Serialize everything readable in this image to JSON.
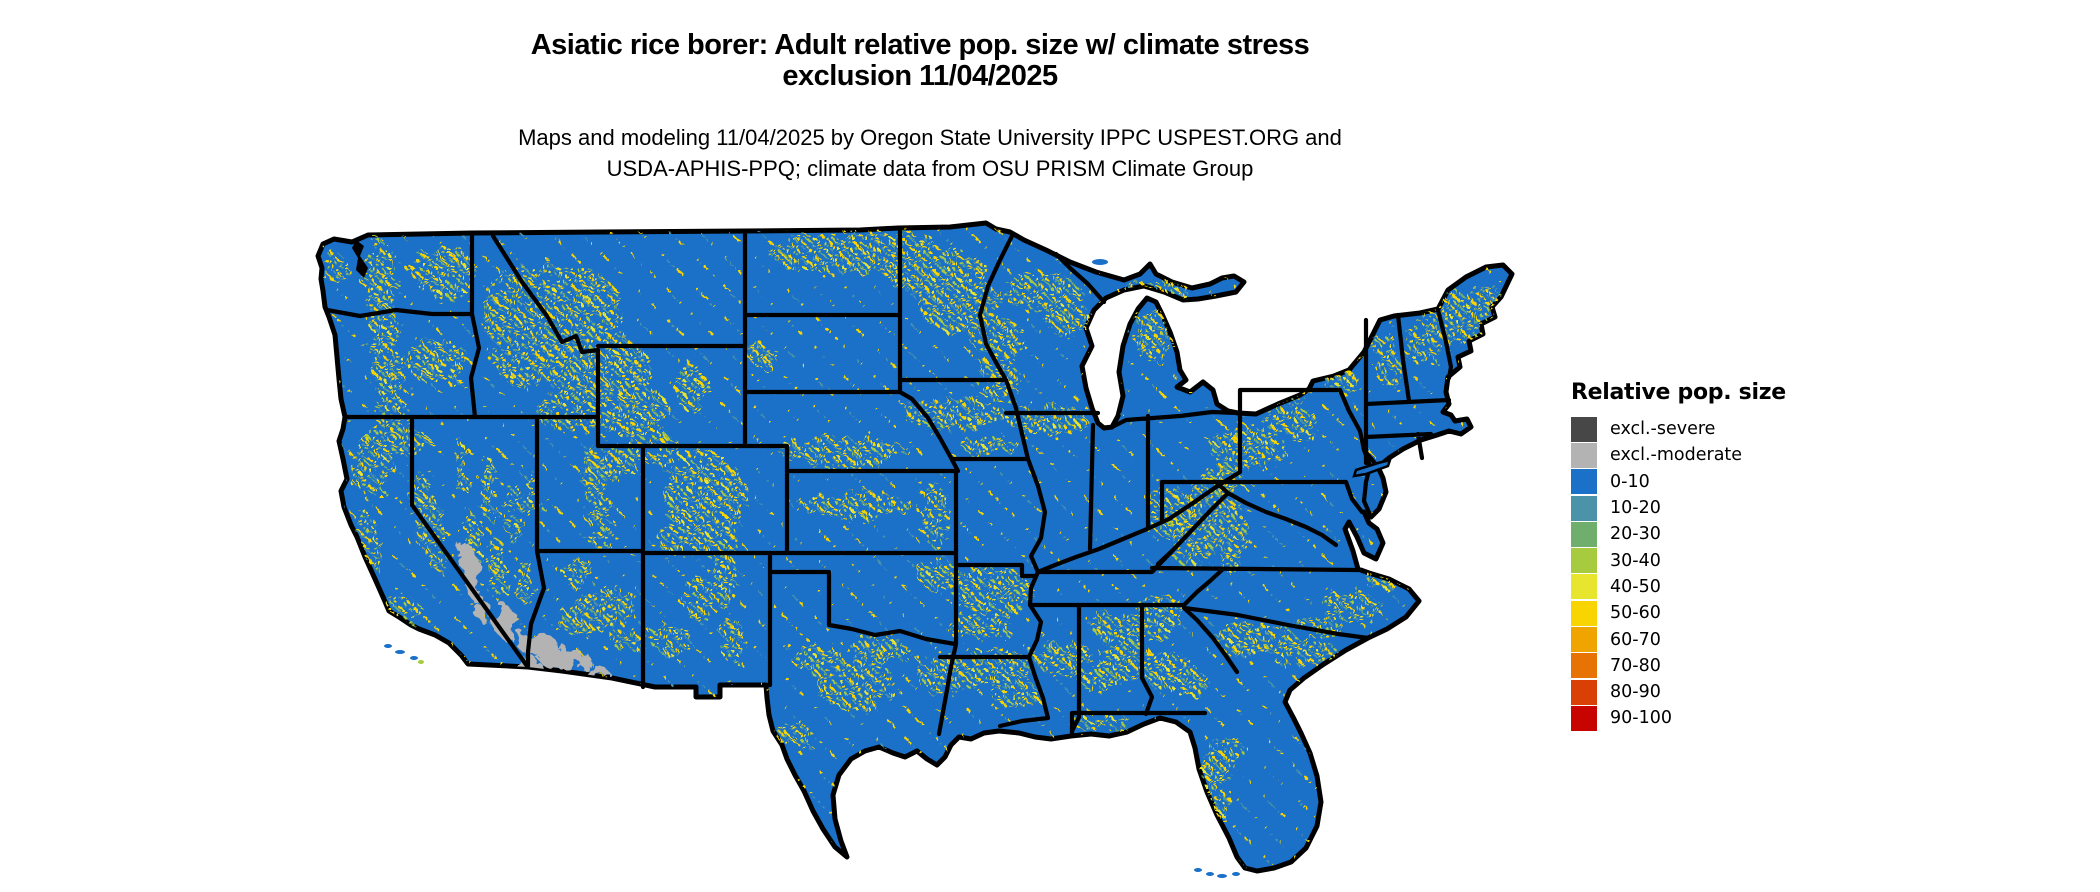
{
  "title": {
    "line1": "Asiatic rice borer: Adult relative pop. size w/ climate stress",
    "line2": "exclusion 11/04/2025"
  },
  "subtitle": {
    "line1": "Maps and modeling 11/04/2025 by Oregon State University IPPC USPEST.ORG and",
    "line2": "USDA-APHIS-PPQ; climate data from OSU PRISM Climate Group"
  },
  "legend": {
    "title": "Relative pop. size",
    "items": [
      {
        "label": "excl.-severe",
        "color": "#474747"
      },
      {
        "label": "excl.-moderate",
        "color": "#b3b3b3"
      },
      {
        "label": "0-10",
        "color": "#1b70c8"
      },
      {
        "label": "10-20",
        "color": "#4a93a8"
      },
      {
        "label": "20-30",
        "color": "#6fae6d"
      },
      {
        "label": "30-40",
        "color": "#a6cb3f"
      },
      {
        "label": "40-50",
        "color": "#e8e52e"
      },
      {
        "label": "50-60",
        "color": "#f8d400"
      },
      {
        "label": "60-70",
        "color": "#f0a400"
      },
      {
        "label": "70-80",
        "color": "#e87305"
      },
      {
        "label": "80-90",
        "color": "#d94006"
      },
      {
        "label": "90-100",
        "color": "#c80400"
      }
    ]
  },
  "map": {
    "region": "Conterminous United States",
    "base_color": "#1b70c8",
    "border_color": "#000000",
    "background_color": "#ffffff",
    "exclusion_moderate_color": "#b3b3b3",
    "speckle_colors": {
      "yellow": "#f8d400",
      "lime": "#e8e52e",
      "yellowgreen": "#a6cb3f",
      "teal": "#4a93a8",
      "green": "#6fae6d"
    }
  }
}
